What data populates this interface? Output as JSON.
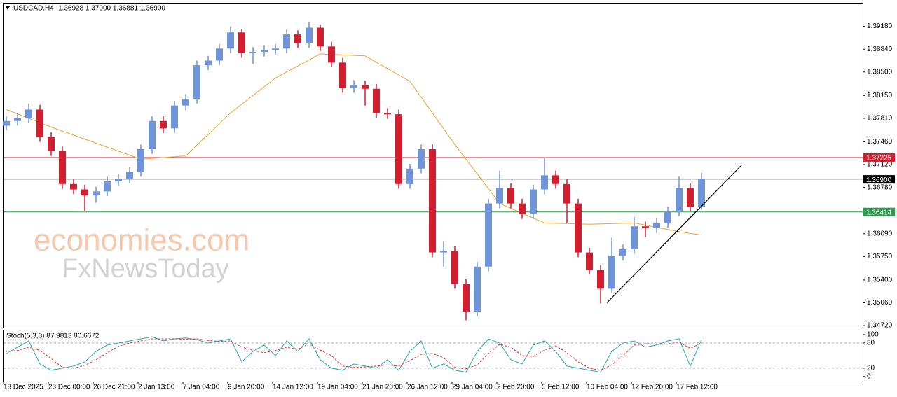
{
  "chart_data": [
    {
      "type": "candlestick",
      "title": "USDCAD,H4",
      "subtitle": "1.36928 1.37000 1.36881 1.36900",
      "x": [
        0,
        1,
        2,
        3,
        4,
        5,
        6,
        7,
        8,
        9,
        10,
        11,
        12,
        13,
        14,
        15,
        16,
        17,
        18,
        19,
        20,
        21,
        22,
        23,
        24,
        25,
        26,
        27,
        28,
        29,
        30,
        31,
        32,
        33,
        34,
        35,
        36,
        37,
        38,
        39,
        40,
        41,
        42,
        43,
        44,
        45,
        46,
        47,
        48,
        49,
        50,
        51,
        52,
        53,
        54,
        55,
        56,
        57,
        58,
        59,
        60,
        61,
        62
      ],
      "open": [
        1.377,
        1.3777,
        1.3781,
        1.3794,
        1.3753,
        1.3732,
        1.3683,
        1.3675,
        1.3666,
        1.3672,
        1.3687,
        1.3691,
        1.3701,
        1.3735,
        1.3777,
        1.3766,
        1.38,
        1.381,
        1.386,
        1.3867,
        1.3885,
        1.3909,
        1.3878,
        1.388,
        1.3883,
        1.3885,
        1.3906,
        1.3893,
        1.3916,
        1.3888,
        1.3864,
        1.3826,
        1.383,
        1.3825,
        1.3789,
        1.3787,
        1.3683,
        1.3706,
        1.3735,
        1.3581,
        1.3583,
        1.3534,
        1.3493,
        1.356,
        1.3654,
        1.3677,
        1.3654,
        1.3638,
        1.3675,
        1.3696,
        1.3683,
        1.3654,
        1.3581,
        1.3555,
        1.3527,
        1.3576,
        1.3586,
        1.362,
        1.3617,
        1.3625,
        1.3642,
        1.3677,
        1.3649
      ],
      "high": [
        1.3784,
        1.3788,
        1.3803,
        1.3801,
        1.376,
        1.3739,
        1.369,
        1.3682,
        1.3679,
        1.3694,
        1.3698,
        1.3708,
        1.3742,
        1.3784,
        1.3784,
        1.3807,
        1.3817,
        1.3867,
        1.3874,
        1.3892,
        1.3918,
        1.3914,
        1.3887,
        1.389,
        1.3892,
        1.3913,
        1.3912,
        1.3924,
        1.3921,
        1.3895,
        1.3871,
        1.3838,
        1.3837,
        1.3832,
        1.3796,
        1.3794,
        1.3713,
        1.3742,
        1.3742,
        1.3598,
        1.359,
        1.3541,
        1.3567,
        1.3661,
        1.3703,
        1.3684,
        1.3661,
        1.3682,
        1.3722,
        1.3703,
        1.369,
        1.3661,
        1.3588,
        1.3562,
        1.3603,
        1.3593,
        1.3634,
        1.3627,
        1.3632,
        1.3649,
        1.3694,
        1.3684,
        1.37
      ],
      "low": [
        1.3763,
        1.377,
        1.3774,
        1.3746,
        1.3725,
        1.3676,
        1.3668,
        1.3643,
        1.3655,
        1.3665,
        1.368,
        1.3684,
        1.3694,
        1.3728,
        1.3759,
        1.3759,
        1.3793,
        1.3803,
        1.3853,
        1.386,
        1.3878,
        1.3871,
        1.3862,
        1.3873,
        1.3876,
        1.3878,
        1.3886,
        1.3886,
        1.3881,
        1.3857,
        1.3819,
        1.3819,
        1.38,
        1.3782,
        1.378,
        1.3676,
        1.3676,
        1.3699,
        1.3574,
        1.356,
        1.3527,
        1.348,
        1.3486,
        1.3553,
        1.3647,
        1.3647,
        1.3631,
        1.3631,
        1.3668,
        1.3676,
        1.3625,
        1.3574,
        1.3548,
        1.3505,
        1.352,
        1.3569,
        1.3579,
        1.3604,
        1.361,
        1.3618,
        1.3635,
        1.3642,
        1.3645
      ],
      "close": [
        1.3777,
        1.3781,
        1.3794,
        1.3753,
        1.3732,
        1.3683,
        1.3675,
        1.3666,
        1.3672,
        1.3687,
        1.3691,
        1.3701,
        1.3735,
        1.3777,
        1.3766,
        1.38,
        1.381,
        1.386,
        1.3867,
        1.3885,
        1.3909,
        1.3878,
        1.388,
        1.3883,
        1.3885,
        1.3906,
        1.3893,
        1.3916,
        1.3888,
        1.3864,
        1.3826,
        1.383,
        1.3825,
        1.3789,
        1.3787,
        1.3683,
        1.3706,
        1.3735,
        1.3581,
        1.3583,
        1.3534,
        1.3493,
        1.356,
        1.3654,
        1.3677,
        1.3654,
        1.3638,
        1.3675,
        1.3696,
        1.3683,
        1.3654,
        1.3581,
        1.3555,
        1.3527,
        1.3576,
        1.3586,
        1.362,
        1.3617,
        1.3625,
        1.3642,
        1.3677,
        1.3649,
        1.369
      ],
      "up_color": "#6f94d8",
      "down_color": "#d11f2f",
      "ma": {
        "color": "#f0a030",
        "x": [
          0,
          4,
          8,
          12,
          16,
          20,
          24,
          28,
          32,
          36,
          40,
          44,
          48,
          52,
          56,
          60,
          62
        ],
        "values": [
          1.3794,
          1.3768,
          1.3744,
          1.372,
          1.3725,
          1.3789,
          1.3841,
          1.3877,
          1.3874,
          1.3836,
          1.3742,
          1.3654,
          1.3625,
          1.3623,
          1.3625,
          1.3612,
          1.3607
        ]
      },
      "trendline": {
        "color": "#000000",
        "x": [
          53.56,
          65.56
        ],
        "values": [
          1.3506,
          1.3711
        ]
      },
      "levels": [
        {
          "value": 1.37225,
          "label": "1.37225",
          "color": "#d11f2f"
        },
        {
          "value": 1.369,
          "label": "1.36900",
          "color": "#000000",
          "line_color": "#b0b0b0"
        },
        {
          "value": 1.36414,
          "label": "1.36414",
          "color": "#2e9a4e"
        }
      ],
      "watermark": [
        "economies.com",
        "FxNewsToday"
      ],
      "xlim": [
        -0.25,
        76.375
      ],
      "ylim": [
        1.347,
        1.3952
      ],
      "xticks": [
        {
          "value": -0.25,
          "label": "18 Dec 2025"
        },
        {
          "value": 3.75,
          "label": "23 Dec 00:00"
        },
        {
          "value": 7.75,
          "label": "26 Dec 21:00"
        },
        {
          "value": 11.75,
          "label": "2 Jan 13:00"
        },
        {
          "value": 15.75,
          "label": "7 Jan 04:00"
        },
        {
          "value": 19.75,
          "label": "9 Jan 20:00"
        },
        {
          "value": 23.75,
          "label": "14 Jan 12:00"
        },
        {
          "value": 27.75,
          "label": "19 Jan 04:00"
        },
        {
          "value": 31.75,
          "label": "21 Jan 20:00"
        },
        {
          "value": 35.75,
          "label": "26 Jan 12:00"
        },
        {
          "value": 39.75,
          "label": "29 Jan 04:00"
        },
        {
          "value": 43.75,
          "label": "2 Feb 20:00"
        },
        {
          "value": 47.75,
          "label": "5 Feb 12:00"
        },
        {
          "value": 51.75,
          "label": "10 Feb 04:00"
        },
        {
          "value": 55.75,
          "label": "12 Feb 20:00"
        },
        {
          "value": 59.75,
          "label": "17 Feb 12:00"
        }
      ],
      "yticks": [
        {
          "value": 1.3918,
          "label": "1.39180"
        },
        {
          "value": 1.3884,
          "label": "1.38840"
        },
        {
          "value": 1.385,
          "label": "1.38500"
        },
        {
          "value": 1.3815,
          "label": "1.38150"
        },
        {
          "value": 1.3781,
          "label": "1.37810"
        },
        {
          "value": 1.3746,
          "label": "1.37460"
        },
        {
          "value": 1.3712,
          "label": "1.37120"
        },
        {
          "value": 1.3678,
          "label": "1.36780"
        },
        {
          "value": 1.3609,
          "label": "1.36090"
        },
        {
          "value": 1.3575,
          "label": "1.35750"
        },
        {
          "value": 1.354,
          "label": "1.35400"
        },
        {
          "value": 1.3506,
          "label": "1.35060"
        },
        {
          "value": 1.3472,
          "label": "1.34720"
        }
      ]
    },
    {
      "type": "line",
      "title": "Stoch(5,3,3) 87.9813 80.6672",
      "series": [
        {
          "color": "#2aa7b8",
          "values": [
            55,
            70,
            85,
            30,
            15,
            20,
            25,
            35,
            60,
            75,
            80,
            85,
            90,
            95,
            85,
            90,
            92,
            88,
            80,
            85,
            90,
            35,
            60,
            75,
            50,
            85,
            60,
            90,
            40,
            20,
            15,
            30,
            25,
            20,
            40,
            15,
            60,
            85,
            20,
            30,
            15,
            10,
            60,
            90,
            80,
            40,
            30,
            75,
            85,
            60,
            25,
            20,
            15,
            10,
            60,
            80,
            85,
            70,
            75,
            85,
            90,
            25,
            87.9813
          ]
        },
        {
          "color": "#e03030",
          "dashed": true,
          "values": [
            60,
            62,
            70,
            62,
            43,
            22,
            20,
            27,
            40,
            57,
            72,
            80,
            85,
            90,
            90,
            90,
            89,
            90,
            86,
            84,
            85,
            70,
            62,
            57,
            62,
            70,
            65,
            78,
            63,
            50,
            25,
            22,
            23,
            25,
            28,
            25,
            38,
            53,
            55,
            45,
            22,
            18,
            28,
            55,
            77,
            70,
            50,
            48,
            63,
            73,
            57,
            35,
            20,
            15,
            28,
            50,
            75,
            78,
            77,
            77,
            83,
            67,
            80.6672
          ]
        }
      ],
      "levels": [
        20,
        80
      ],
      "ylim": [
        -12,
        110
      ],
      "yticks": [
        0,
        20,
        80,
        100
      ]
    }
  ]
}
